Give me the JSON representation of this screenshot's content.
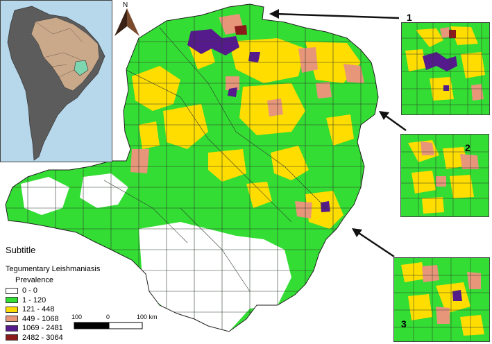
{
  "legend": {
    "title": "Subtitle",
    "subtitle": "Tegumentary Leishmaniasis",
    "measure": "Prevalence",
    "classes": [
      {
        "label": "0 - 0",
        "color": "#ffffff"
      },
      {
        "label": "1 - 120",
        "color": "#33dd33"
      },
      {
        "label": "121 - 448",
        "color": "#ffdd00"
      },
      {
        "label": "449 - 1068",
        "color": "#e8967a"
      },
      {
        "label": "1069 - 2481",
        "color": "#551a8b"
      },
      {
        "label": "2482 - 3064",
        "color": "#8b1a1a"
      }
    ]
  },
  "north_arrow": {
    "label": "N"
  },
  "scale_bar": {
    "left_label": "100",
    "mid_label": "0",
    "right_label": "100 km"
  },
  "insets": [
    {
      "number": "1"
    },
    {
      "number": "2"
    },
    {
      "number": "3"
    }
  ],
  "colors": {
    "ocean": "#b7d7ea",
    "continent": "#5c5c5c",
    "brazil": "#c9a98a",
    "state": "#7ed6b0",
    "green": "#33dd33",
    "yellow": "#ffdd00",
    "salmon": "#e8967a",
    "purple": "#551a8b",
    "darkred": "#8b1a1a",
    "white": "#ffffff"
  }
}
